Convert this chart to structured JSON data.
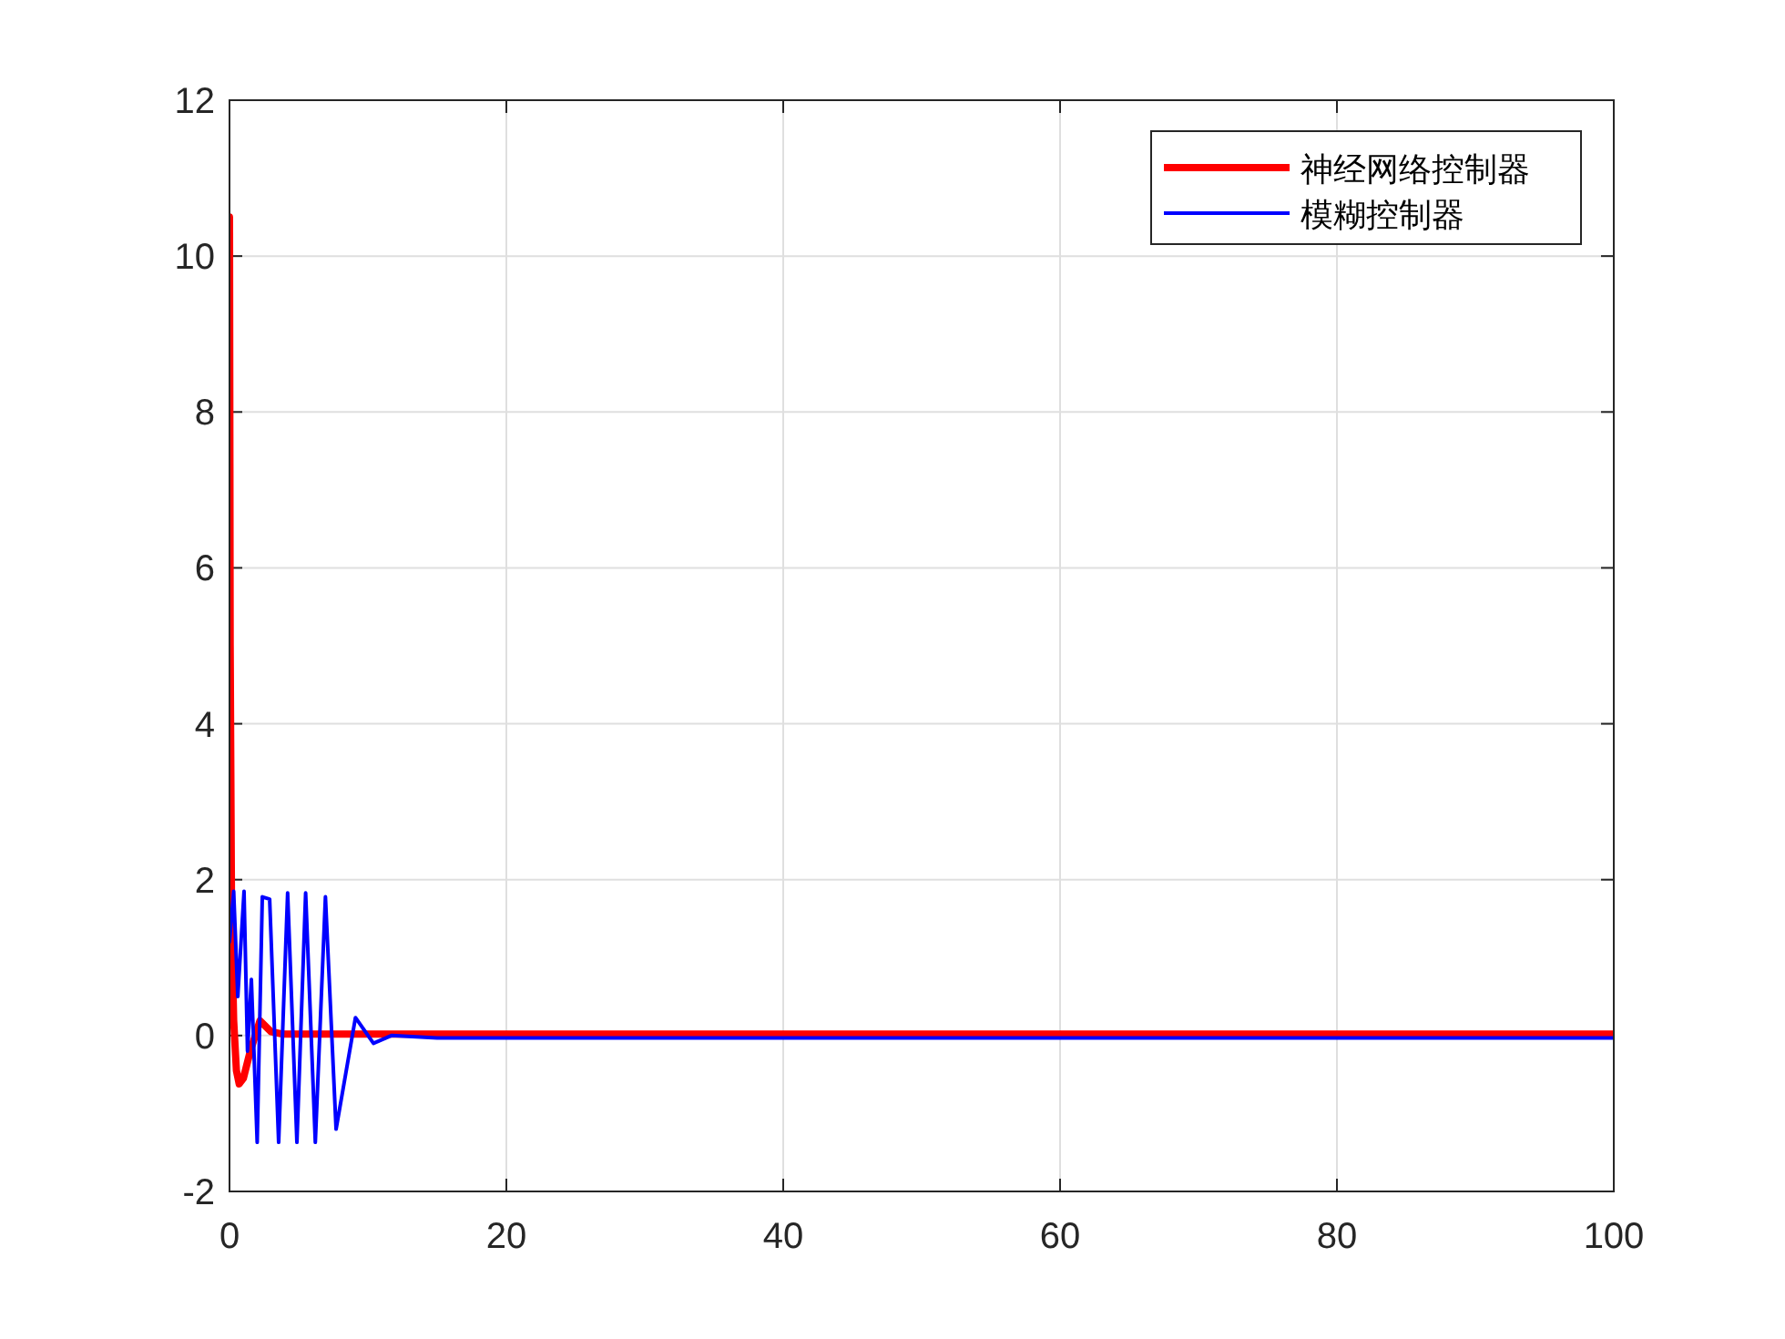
{
  "chart_data": {
    "type": "line",
    "xlim": [
      0,
      100
    ],
    "ylim": [
      -2,
      12
    ],
    "xticks": [
      0,
      20,
      40,
      60,
      80,
      100
    ],
    "yticks": [
      -2,
      0,
      2,
      4,
      6,
      8,
      10,
      12
    ],
    "grid": true,
    "legend": "top right",
    "line_style": "solid",
    "series": [
      {
        "name": "神经网络控制器",
        "color": "#ff0000",
        "x": [
          0,
          0.05,
          0.15,
          0.3,
          0.5,
          0.7,
          1.0,
          1.5,
          2.2,
          3.0,
          3.8,
          6,
          10,
          20,
          50,
          100
        ],
        "values": [
          10.5,
          5.0,
          1.5,
          0.2,
          -0.45,
          -0.62,
          -0.55,
          -0.2,
          0.19,
          0.05,
          0.02,
          0.02,
          0.02,
          0.02,
          0.02,
          0.02
        ]
      },
      {
        "name": "模糊控制器",
        "color": "#0000ff",
        "x": [
          0,
          0.3,
          0.6,
          1.05,
          1.3,
          1.58,
          2.0,
          2.37,
          2.9,
          3.55,
          4.2,
          4.87,
          5.5,
          6.2,
          6.93,
          7.7,
          9.1,
          10.4,
          11.7,
          15,
          30,
          60,
          100
        ],
        "values": [
          1.2,
          1.85,
          0.5,
          1.85,
          -0.2,
          0.72,
          -1.37,
          1.78,
          1.75,
          -1.37,
          1.83,
          -1.37,
          1.83,
          -1.37,
          1.78,
          -1.2,
          0.23,
          -0.1,
          0,
          -0.03,
          -0.03,
          -0.03,
          -0.03
        ]
      }
    ]
  }
}
